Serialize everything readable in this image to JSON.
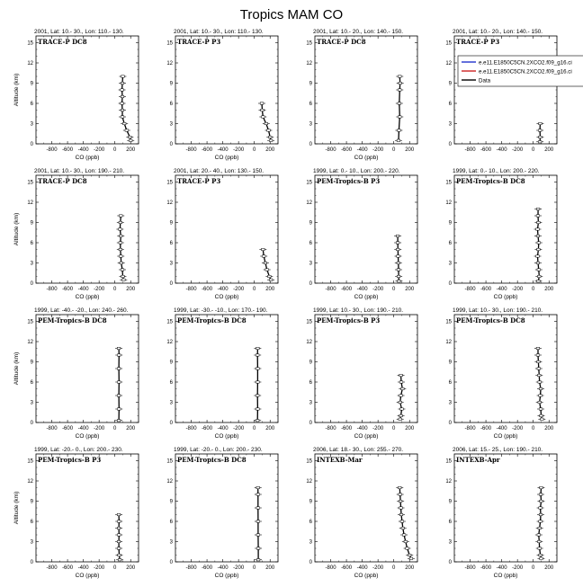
{
  "figure_title": "Tropics MAM CO",
  "colors": {
    "data": "#000000",
    "model_1": "#2233cc",
    "model_2": "#cc2222"
  },
  "legend": {
    "entries": [
      {
        "label": "e.e11.E1850C5CN.2XCO2.f09_g16.ci",
        "color": "#2233cc"
      },
      {
        "label": "e.e11.E1850C5CN.2XCO2.f09_g16.ci",
        "color": "#cc2222"
      },
      {
        "label": "Data",
        "color": "#000000"
      }
    ]
  },
  "chart_data": [
    {
      "type": "line",
      "title": "2001, Lat: 10.- 30., Lon: 110.- 130.",
      "campaign": "TRACE-P DC8",
      "xlabel": "CO (ppb)",
      "ylabel": "Altitude (km)",
      "xlim": [
        -1000,
        300
      ],
      "ylim": [
        0,
        16
      ],
      "xticks": [
        -800,
        -600,
        -400,
        -200,
        0,
        200
      ],
      "yticks": [
        0,
        3,
        6,
        9,
        12,
        15
      ],
      "series": [
        {
          "name": "Data",
          "points": [
            [
              200,
              0.5
            ],
            [
              190,
              1
            ],
            [
              150,
              2
            ],
            [
              120,
              3
            ],
            [
              95,
              4
            ],
            [
              95,
              5
            ],
            [
              90,
              6
            ],
            [
              95,
              7
            ],
            [
              90,
              8
            ],
            [
              95,
              9
            ],
            [
              100,
              10
            ]
          ]
        }
      ]
    },
    {
      "type": "line",
      "title": "2001, Lat: 10.- 30., Lon: 110.- 130.",
      "campaign": "TRACE-P P3",
      "xlabel": "CO (ppb)",
      "ylabel": "",
      "xlim": [
        -1000,
        300
      ],
      "ylim": [
        0,
        16
      ],
      "xticks": [
        -800,
        -600,
        -400,
        -200,
        0,
        200
      ],
      "yticks": [
        0,
        3,
        6,
        9,
        12,
        15
      ],
      "series": [
        {
          "name": "Data",
          "points": [
            [
              210,
              0.5
            ],
            [
              200,
              1
            ],
            [
              180,
              2
            ],
            [
              150,
              3
            ],
            [
              110,
              4
            ],
            [
              100,
              5
            ],
            [
              95,
              6
            ]
          ]
        }
      ]
    },
    {
      "type": "line",
      "title": "2001, Lat: 10.- 20., Lon: 140.- 150.",
      "campaign": "TRACE-P DC8",
      "xlabel": "CO (ppb)",
      "ylabel": "",
      "xlim": [
        -1000,
        300
      ],
      "ylim": [
        0,
        16
      ],
      "xticks": [
        -800,
        -600,
        -400,
        -200,
        0,
        200
      ],
      "yticks": [
        0,
        3,
        6,
        9,
        12,
        15
      ],
      "series": [
        {
          "name": "Data",
          "points": [
            [
              60,
              0.5
            ],
            [
              65,
              2
            ],
            [
              75,
              4
            ],
            [
              70,
              6
            ],
            [
              75,
              8
            ],
            [
              80,
              9
            ],
            [
              75,
              10
            ]
          ]
        }
      ]
    },
    {
      "type": "line",
      "title": "2001, Lat: 10.- 20., Lon: 140.- 150.",
      "campaign": "TRACE-P P3",
      "xlabel": "",
      "ylabel": "",
      "xlim": [
        -1000,
        300
      ],
      "ylim": [
        0,
        16
      ],
      "xticks": [
        -800,
        -600,
        -400,
        -200,
        0,
        200
      ],
      "yticks": [
        0,
        3,
        6,
        9,
        12,
        15
      ],
      "series": [
        {
          "name": "Data",
          "points": [
            [
              85,
              0.3
            ],
            [
              88,
              1
            ],
            [
              85,
              2
            ],
            [
              88,
              3
            ]
          ]
        }
      ]
    },
    {
      "type": "line",
      "title": "2001, Lat: 10.- 30., Lon: 190.- 210.",
      "campaign": "TRACE-P DC8",
      "xlabel": "CO (ppb)",
      "ylabel": "Altitude (km)",
      "xlim": [
        -1000,
        300
      ],
      "ylim": [
        0,
        16
      ],
      "xticks": [
        -800,
        -600,
        -400,
        -200,
        0,
        200
      ],
      "yticks": [
        0,
        3,
        6,
        9,
        12,
        15
      ],
      "series": [
        {
          "name": "Data",
          "points": [
            [
              110,
              0.5
            ],
            [
              100,
              1
            ],
            [
              95,
              2
            ],
            [
              80,
              3
            ],
            [
              75,
              4
            ],
            [
              70,
              5
            ],
            [
              70,
              6
            ],
            [
              75,
              7
            ],
            [
              65,
              8
            ],
            [
              70,
              9
            ],
            [
              75,
              10
            ]
          ]
        }
      ]
    },
    {
      "type": "line",
      "title": "2001, Lat: 20.- 40., Lon: 130.- 150.",
      "campaign": "TRACE-P P3",
      "xlabel": "CO (ppb)",
      "ylabel": "",
      "xlim": [
        -1000,
        300
      ],
      "ylim": [
        0,
        16
      ],
      "xticks": [
        -800,
        -600,
        -400,
        -200,
        0,
        200
      ],
      "yticks": [
        0,
        3,
        6,
        9,
        12,
        15
      ],
      "series": [
        {
          "name": "Data",
          "points": [
            [
              210,
              0.5
            ],
            [
              190,
              1
            ],
            [
              160,
              2
            ],
            [
              140,
              3
            ],
            [
              120,
              4
            ],
            [
              110,
              5
            ]
          ]
        }
      ]
    },
    {
      "type": "line",
      "title": "1999, Lat: 0.- 10., Lon: 200.- 220.",
      "campaign": "PEM-Tropics-B P3",
      "xlabel": "CO (ppb)",
      "ylabel": "",
      "xlim": [
        -1000,
        300
      ],
      "ylim": [
        0,
        16
      ],
      "xticks": [
        -800,
        -600,
        -400,
        -200,
        0,
        200
      ],
      "yticks": [
        0,
        3,
        6,
        9,
        12,
        15
      ],
      "series": [
        {
          "name": "Data",
          "points": [
            [
              65,
              0.3
            ],
            [
              62,
              1
            ],
            [
              60,
              2
            ],
            [
              58,
              3
            ],
            [
              55,
              4
            ],
            [
              52,
              5
            ],
            [
              50,
              6
            ],
            [
              50,
              7
            ]
          ]
        }
      ]
    },
    {
      "type": "line",
      "title": "1999, Lat: 0.- 10., Lon: 200.- 220.",
      "campaign": "PEM-Tropics-B DC8",
      "xlabel": "CO (ppb)",
      "ylabel": "",
      "xlim": [
        -1000,
        300
      ],
      "ylim": [
        0,
        16
      ],
      "xticks": [
        -800,
        -600,
        -400,
        -200,
        0,
        200
      ],
      "yticks": [
        0,
        3,
        6,
        9,
        12,
        15
      ],
      "series": [
        {
          "name": "Data",
          "points": [
            [
              65,
              0.3
            ],
            [
              75,
              1
            ],
            [
              70,
              2
            ],
            [
              60,
              3
            ],
            [
              55,
              4
            ],
            [
              65,
              5
            ],
            [
              70,
              6
            ],
            [
              60,
              7
            ],
            [
              55,
              8
            ],
            [
              65,
              9
            ],
            [
              60,
              10
            ],
            [
              62,
              11
            ]
          ]
        }
      ]
    },
    {
      "type": "line",
      "title": "1999, Lat: -40.- -20., Lon: 240.- 260.",
      "campaign": "PEM-Tropics-B DC8",
      "xlabel": "CO (ppb)",
      "ylabel": "Altitude (km)",
      "xlim": [
        -1000,
        300
      ],
      "ylim": [
        0,
        16
      ],
      "xticks": [
        -800,
        -600,
        -400,
        -200,
        0,
        200
      ],
      "yticks": [
        0,
        3,
        6,
        9,
        12,
        15
      ],
      "series": [
        {
          "name": "Data",
          "points": [
            [
              50,
              0.3
            ],
            [
              52,
              2
            ],
            [
              50,
              4
            ],
            [
              52,
              6
            ],
            [
              50,
              8
            ],
            [
              52,
              10
            ],
            [
              50,
              11
            ]
          ]
        }
      ]
    },
    {
      "type": "line",
      "title": "1999, Lat: -30.- -10., Lon: 170.- 190.",
      "campaign": "PEM-Tropics-B DC8",
      "xlabel": "CO (ppb)",
      "ylabel": "",
      "xlim": [
        -1000,
        300
      ],
      "ylim": [
        0,
        16
      ],
      "xticks": [
        -800,
        -600,
        -400,
        -200,
        0,
        200
      ],
      "yticks": [
        0,
        3,
        6,
        9,
        12,
        15
      ],
      "series": [
        {
          "name": "Data",
          "points": [
            [
              40,
              0.3
            ],
            [
              42,
              2
            ],
            [
              40,
              4
            ],
            [
              42,
              6
            ],
            [
              42,
              8
            ],
            [
              40,
              10
            ],
            [
              42,
              11
            ]
          ]
        }
      ]
    },
    {
      "type": "line",
      "title": "1999, Lat: 10.- 30., Lon: 190.- 210.",
      "campaign": "PEM-Tropics-B P3",
      "xlabel": "CO (ppb)",
      "ylabel": "",
      "xlim": [
        -1000,
        300
      ],
      "ylim": [
        0,
        16
      ],
      "xticks": [
        -800,
        -600,
        -400,
        -200,
        0,
        200
      ],
      "yticks": [
        0,
        3,
        6,
        9,
        12,
        15
      ],
      "series": [
        {
          "name": "Data",
          "points": [
            [
              80,
              0.5
            ],
            [
              90,
              1
            ],
            [
              100,
              2
            ],
            [
              80,
              3
            ],
            [
              90,
              4
            ],
            [
              110,
              5
            ],
            [
              95,
              6
            ],
            [
              90,
              7
            ]
          ]
        }
      ]
    },
    {
      "type": "line",
      "title": "1999, Lat: 10.- 30., Lon: 190.- 210.",
      "campaign": "PEM-Tropics-B DC8",
      "xlabel": "CO (ppb)",
      "ylabel": "",
      "xlim": [
        -1000,
        300
      ],
      "ylim": [
        0,
        16
      ],
      "xticks": [
        -800,
        -600,
        -400,
        -200,
        0,
        200
      ],
      "yticks": [
        0,
        3,
        6,
        9,
        12,
        15
      ],
      "series": [
        {
          "name": "Data",
          "points": [
            [
              110,
              0.5
            ],
            [
              100,
              1
            ],
            [
              95,
              2
            ],
            [
              80,
              3
            ],
            [
              90,
              4
            ],
            [
              95,
              5
            ],
            [
              80,
              6
            ],
            [
              75,
              7
            ],
            [
              70,
              8
            ],
            [
              65,
              9
            ],
            [
              60,
              10
            ],
            [
              60,
              11
            ]
          ]
        }
      ]
    },
    {
      "type": "line",
      "title": "1999, Lat: -20.- 0., Lon: 200.- 230.",
      "campaign": "PEM-Tropics-B P3",
      "xlabel": "CO (ppb)",
      "ylabel": "Altitude (km)",
      "xlim": [
        -1000,
        300
      ],
      "ylim": [
        0,
        16
      ],
      "xticks": [
        -800,
        -600,
        -400,
        -200,
        0,
        200
      ],
      "yticks": [
        0,
        3,
        6,
        9,
        12,
        15
      ],
      "series": [
        {
          "name": "Data",
          "points": [
            [
              62,
              0.3
            ],
            [
              55,
              1
            ],
            [
              50,
              2
            ],
            [
              50,
              3
            ],
            [
              52,
              4
            ],
            [
              50,
              5
            ],
            [
              52,
              6
            ],
            [
              50,
              7
            ]
          ]
        }
      ]
    },
    {
      "type": "line",
      "title": "1999, Lat: -20.- 0., Lon: 200.- 230.",
      "campaign": "PEM-Tropics-B DC8",
      "xlabel": "CO (ppb)",
      "ylabel": "",
      "xlim": [
        -1000,
        300
      ],
      "ylim": [
        0,
        16
      ],
      "xticks": [
        -800,
        -600,
        -400,
        -200,
        0,
        200
      ],
      "yticks": [
        0,
        3,
        6,
        9,
        12,
        15
      ],
      "series": [
        {
          "name": "Data",
          "points": [
            [
              50,
              0.3
            ],
            [
              50,
              2
            ],
            [
              48,
              4
            ],
            [
              48,
              6
            ],
            [
              47,
              8
            ],
            [
              47,
              10
            ],
            [
              46,
              11
            ]
          ]
        }
      ]
    },
    {
      "type": "line",
      "title": "2006, Lat: 18.- 30., Lon: 255.- 270.",
      "campaign": "INTEXB-Mar",
      "xlabel": "CO (ppb)",
      "ylabel": "",
      "xlim": [
        -1000,
        300
      ],
      "ylim": [
        0,
        16
      ],
      "xticks": [
        -800,
        -600,
        -400,
        -200,
        0,
        200
      ],
      "yticks": [
        0,
        3,
        6,
        9,
        12,
        15
      ],
      "series": [
        {
          "name": "Data",
          "points": [
            [
              220,
              0.5
            ],
            [
              200,
              1
            ],
            [
              170,
              2
            ],
            [
              150,
              3
            ],
            [
              130,
              4
            ],
            [
              115,
              5
            ],
            [
              105,
              6
            ],
            [
              95,
              7
            ],
            [
              90,
              8
            ],
            [
              85,
              9
            ],
            [
              80,
              10
            ],
            [
              75,
              11
            ]
          ]
        }
      ]
    },
    {
      "type": "line",
      "title": "2006, Lat: 15.- 25., Lon: 190.- 210.",
      "campaign": "INTEXB-Apr",
      "xlabel": "CO (ppb)",
      "ylabel": "",
      "xlim": [
        -1000,
        300
      ],
      "ylim": [
        0,
        16
      ],
      "xticks": [
        -800,
        -600,
        -400,
        -200,
        0,
        200
      ],
      "yticks": [
        0,
        3,
        6,
        9,
        12,
        15
      ],
      "series": [
        {
          "name": "Data",
          "points": [
            [
              100,
              0.5
            ],
            [
              90,
              1
            ],
            [
              80,
              2
            ],
            [
              75,
              3
            ],
            [
              70,
              4
            ],
            [
              80,
              5
            ],
            [
              90,
              6
            ],
            [
              95,
              7
            ],
            [
              90,
              8
            ],
            [
              100,
              9
            ],
            [
              95,
              10
            ],
            [
              100,
              11
            ]
          ]
        }
      ]
    }
  ]
}
